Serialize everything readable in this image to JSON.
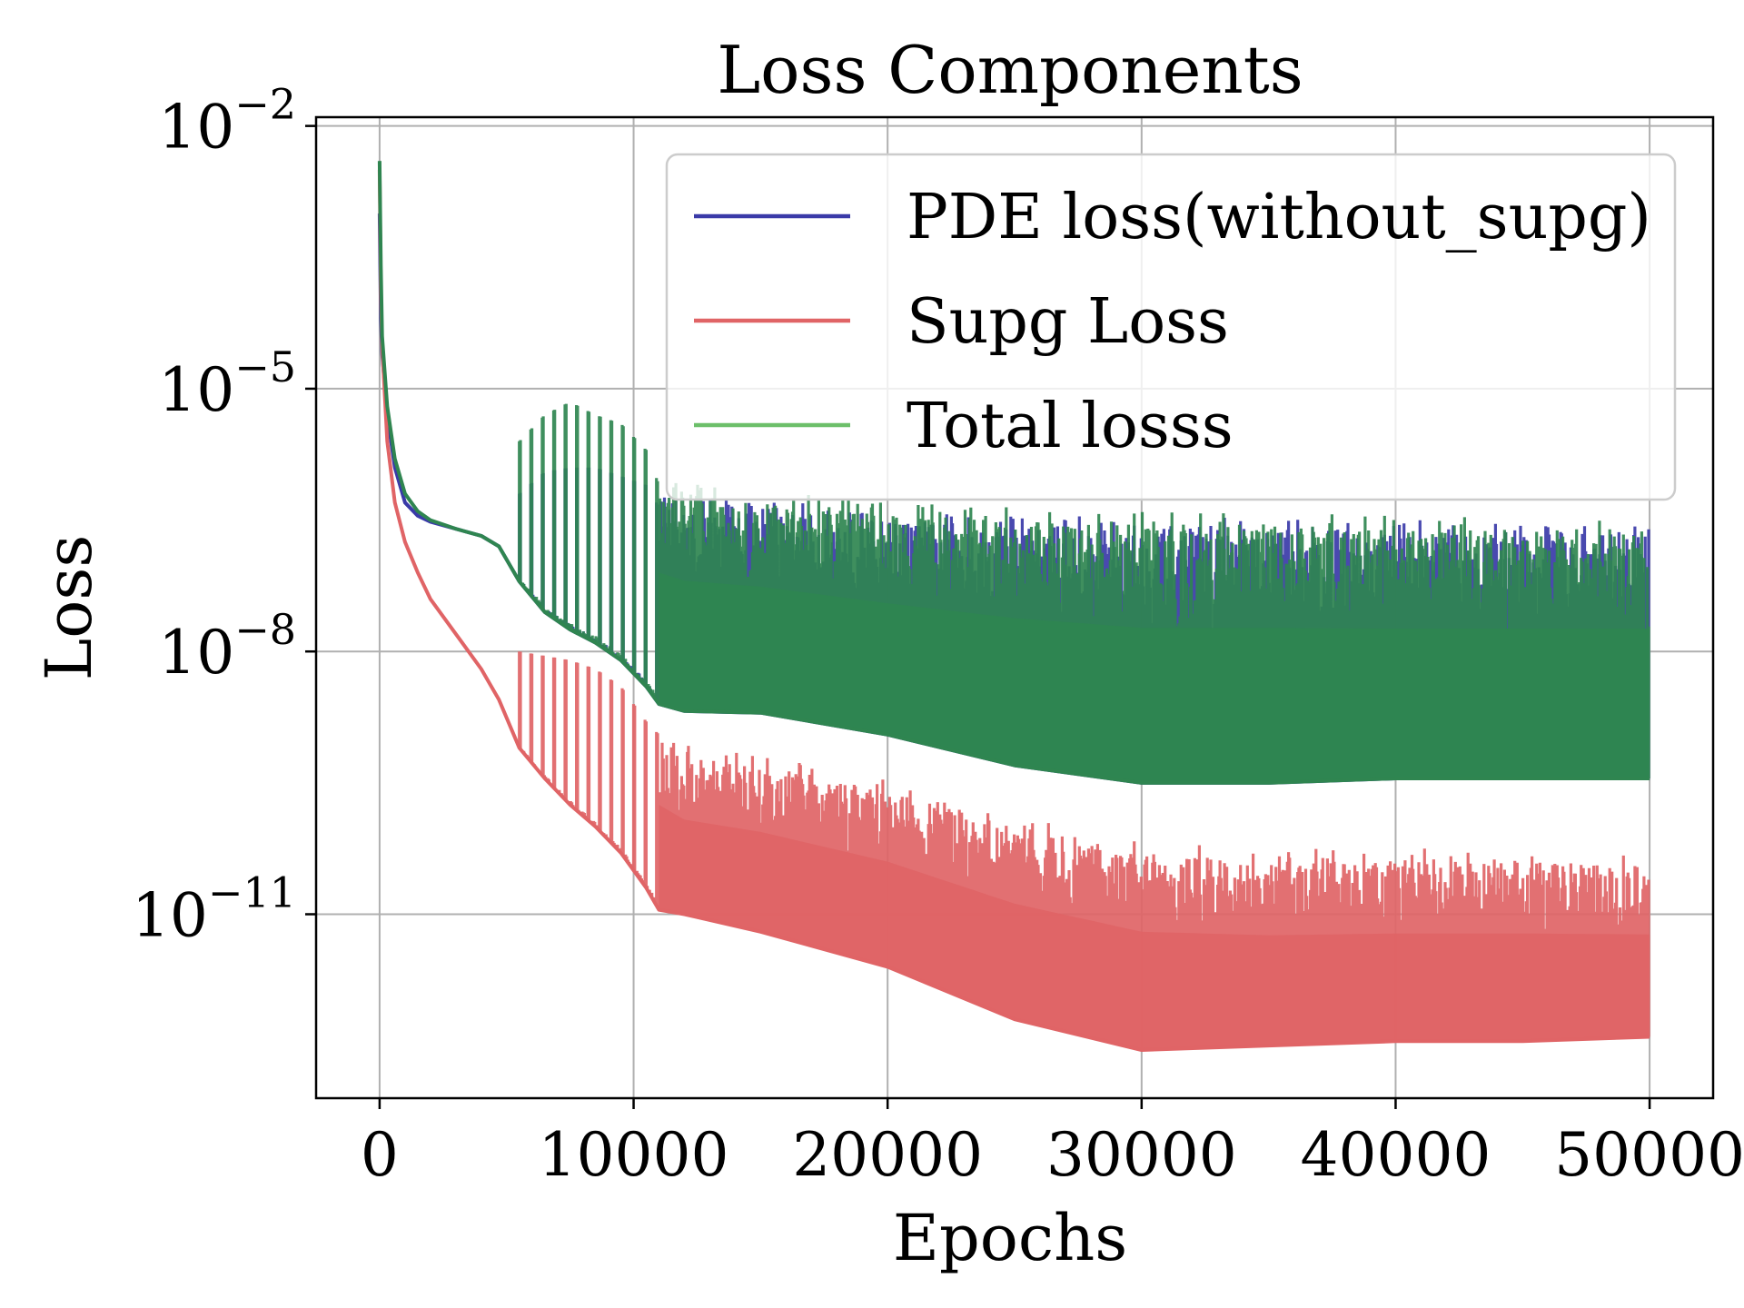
{
  "chart_data": {
    "type": "line",
    "title": "Loss Components",
    "xlabel": "Epochs",
    "ylabel": "Loss",
    "yscale": "log",
    "grid": true,
    "legend_position": "top-right",
    "xlim": [
      -2500,
      52500
    ],
    "ylim_log10": [
      -13.1,
      -1.9
    ],
    "x_ticks": [
      {
        "value": 0,
        "label": "0"
      },
      {
        "value": 10000,
        "label": "10000"
      },
      {
        "value": 20000,
        "label": "20000"
      },
      {
        "value": 30000,
        "label": "30000"
      },
      {
        "value": 40000,
        "label": "40000"
      },
      {
        "value": 50000,
        "label": "50000"
      }
    ],
    "y_ticks": [
      {
        "log10": -2,
        "base": "10",
        "exp": "−2"
      },
      {
        "log10": -5,
        "base": "10",
        "exp": "−5"
      },
      {
        "log10": -8,
        "base": "10",
        "exp": "−8"
      },
      {
        "log10": -11,
        "base": "10",
        "exp": "−11"
      }
    ],
    "series": [
      {
        "name": "PDE loss(without_supg)",
        "color": "#3a3aa8",
        "x": [
          0,
          50,
          100,
          300,
          600,
          1000,
          1500,
          2000,
          3000,
          4000,
          4700,
          5500,
          6500,
          7500,
          8500,
          9500,
          10500,
          11000,
          12000,
          15000,
          20000,
          25000,
          30000,
          35000,
          40000,
          45000,
          50000
        ],
        "log10": [
          -3.0,
          -4.2,
          -4.6,
          -5.3,
          -5.9,
          -6.3,
          -6.45,
          -6.52,
          -6.6,
          -6.68,
          -6.8,
          -7.2,
          -7.55,
          -7.75,
          -7.9,
          -8.1,
          -8.4,
          -8.6,
          -8.68,
          -8.7,
          -8.95,
          -9.3,
          -9.5,
          -9.5,
          -9.45,
          -9.45,
          -9.45
        ],
        "log10_peak": [
          null,
          null,
          null,
          null,
          null,
          null,
          null,
          null,
          null,
          null,
          null,
          -6.2,
          -5.95,
          -5.9,
          -5.9,
          -6.0,
          -6.1,
          -6.35,
          -6.4,
          -6.4,
          -6.5,
          -6.55,
          -6.6,
          -6.6,
          -6.65,
          -6.65,
          -6.65
        ]
      },
      {
        "name": "Supg Loss",
        "color": "#e06466",
        "x": [
          0,
          50,
          100,
          300,
          600,
          1000,
          1500,
          2000,
          3000,
          4000,
          4700,
          5500,
          6500,
          7500,
          8500,
          9500,
          10500,
          11000,
          12000,
          15000,
          20000,
          25000,
          30000,
          35000,
          40000,
          45000,
          50000
        ],
        "log10": [
          -2.5,
          -3.9,
          -4.5,
          -5.6,
          -6.3,
          -6.75,
          -7.1,
          -7.4,
          -7.8,
          -8.2,
          -8.55,
          -9.1,
          -9.45,
          -9.75,
          -10.0,
          -10.3,
          -10.7,
          -10.95,
          -11.0,
          -11.2,
          -11.6,
          -12.2,
          -12.55,
          -12.5,
          -12.45,
          -12.45,
          -12.4
        ],
        "log10_peak": [
          null,
          null,
          null,
          null,
          null,
          null,
          null,
          null,
          null,
          null,
          null,
          -8.0,
          -8.05,
          -8.1,
          -8.2,
          -8.4,
          -8.8,
          -8.95,
          -9.2,
          -9.3,
          -9.6,
          -10.0,
          -10.3,
          -10.4,
          -10.4,
          -10.4,
          -10.45
        ]
      },
      {
        "name": "Total losss",
        "color": "#2f8550",
        "x": [
          0,
          50,
          100,
          300,
          600,
          1000,
          1500,
          2000,
          3000,
          4000,
          4700,
          5500,
          6500,
          7500,
          8500,
          9500,
          10500,
          11000,
          12000,
          15000,
          20000,
          25000,
          30000,
          35000,
          40000,
          45000,
          50000
        ],
        "log10": [
          -2.4,
          -3.6,
          -4.4,
          -5.2,
          -5.8,
          -6.2,
          -6.4,
          -6.5,
          -6.6,
          -6.68,
          -6.8,
          -7.2,
          -7.55,
          -7.75,
          -7.9,
          -8.1,
          -8.4,
          -8.6,
          -8.68,
          -8.7,
          -8.95,
          -9.3,
          -9.5,
          -9.5,
          -9.45,
          -9.45,
          -9.45
        ],
        "log10_peak": [
          null,
          null,
          null,
          null,
          null,
          null,
          null,
          null,
          null,
          null,
          null,
          -5.6,
          -5.3,
          -5.15,
          -5.3,
          -5.4,
          -5.7,
          -6.1,
          -6.2,
          -6.3,
          -6.45,
          -6.5,
          -6.55,
          -6.55,
          -6.6,
          -6.6,
          -6.6
        ]
      }
    ]
  }
}
